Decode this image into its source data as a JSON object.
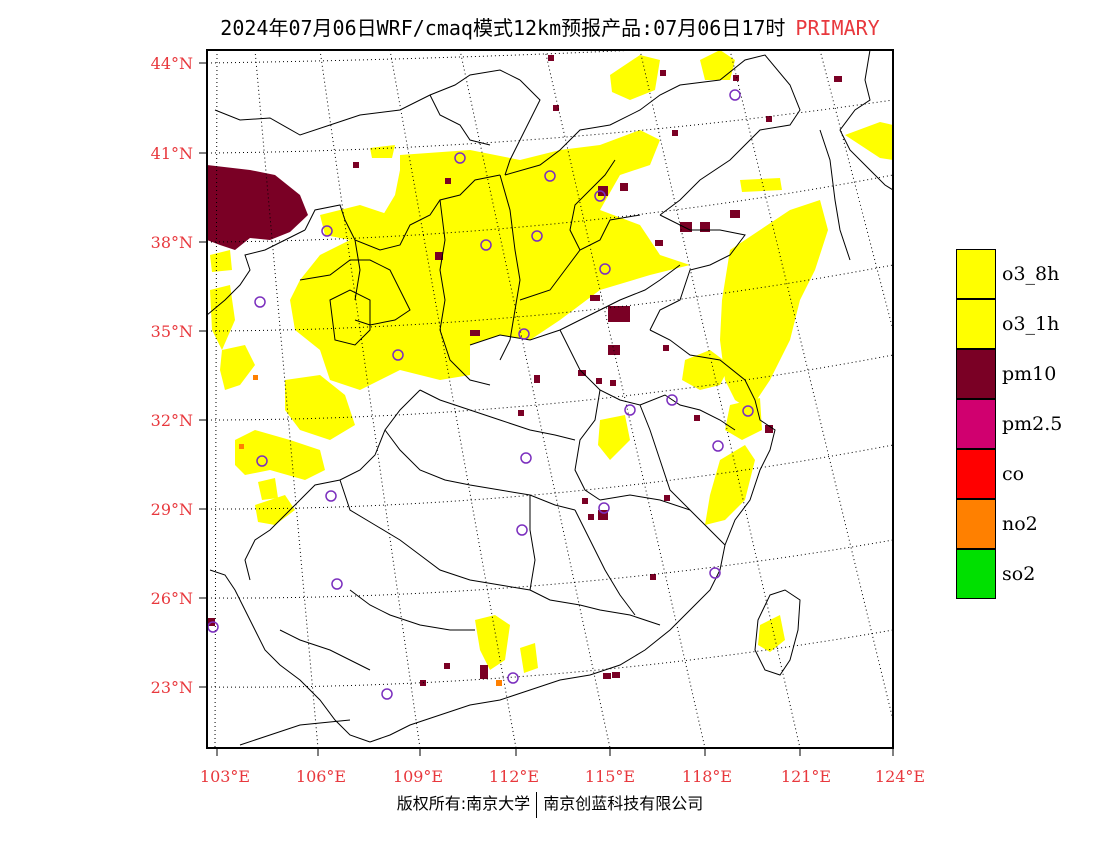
{
  "title": {
    "main": "2024年07月06日WRF/cmaq模式12km预报产品:07月06日17时",
    "tag": "PRIMARY"
  },
  "axes": {
    "lat_labels": [
      "44°N",
      "41°N",
      "38°N",
      "35°N",
      "32°N",
      "29°N",
      "26°N",
      "23°N"
    ],
    "lon_labels": [
      "103°E",
      "106°E",
      "109°E",
      "112°E",
      "115°E",
      "118°E",
      "121°E",
      "124°E"
    ]
  },
  "legend": [
    {
      "label": "o3_8h",
      "color": "#ffff00"
    },
    {
      "label": "o3_1h",
      "color": "#ffff00"
    },
    {
      "label": "pm10",
      "color": "#7a0025"
    },
    {
      "label": "pm2.5",
      "color": "#d0006f"
    },
    {
      "label": "co",
      "color": "#ff0000"
    },
    {
      "label": "no2",
      "color": "#ff8000"
    },
    {
      "label": "so2",
      "color": "#00e000"
    }
  ],
  "footer": {
    "left": "版权所有:南京大学",
    "right": "南京创蓝科技有限公司"
  },
  "colors": {
    "label_red": "#e8383d",
    "station_circle": "#7b2fbe",
    "o3": "#ffff00",
    "pm10": "#7a0025",
    "no2": "#ff8000"
  }
}
